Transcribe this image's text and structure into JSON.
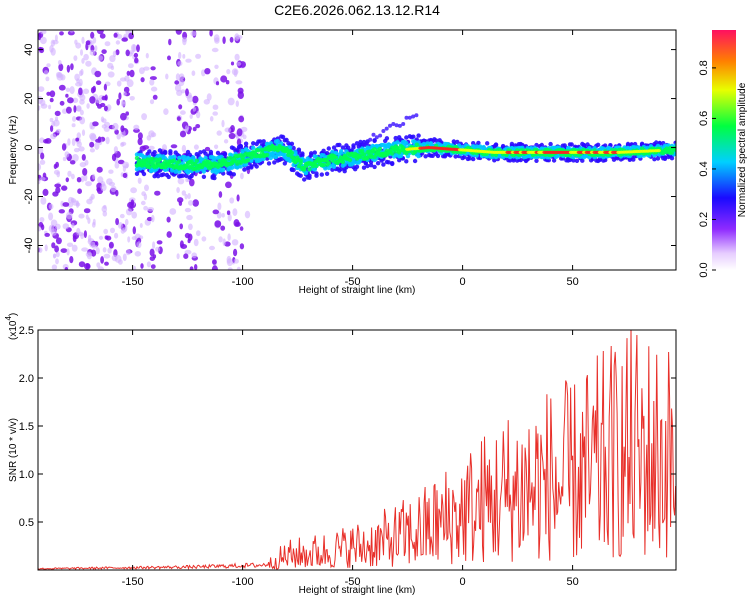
{
  "title": "C2E6.2026.062.13.12.R14",
  "chart_data": [
    {
      "type": "heatmap",
      "xlabel": "Height of straight line (km)",
      "ylabel": "Frequency (Hz)",
      "xlim": [
        -193,
        97
      ],
      "ylim": [
        -50,
        48
      ],
      "x_ticks": [
        -150,
        -100,
        -50,
        0,
        50
      ],
      "y_ticks": [
        -40,
        -20,
        0,
        20,
        40
      ],
      "colorbar": {
        "label": "Normalized spectral amplitude",
        "range": [
          0.0,
          0.95
        ],
        "ticks": [
          "0.0",
          "0.2",
          "0.4",
          "0.6",
          "0.8"
        ]
      },
      "ridge": [
        {
          "x": -148,
          "y": -6
        },
        {
          "x": -130,
          "y": -7
        },
        {
          "x": -110,
          "y": -7
        },
        {
          "x": -95,
          "y": -3
        },
        {
          "x": -82,
          "y": 0
        },
        {
          "x": -72,
          "y": -8
        },
        {
          "x": -60,
          "y": -5
        },
        {
          "x": -45,
          "y": -3
        },
        {
          "x": -30,
          "y": -1
        },
        {
          "x": -15,
          "y": 0
        },
        {
          "x": 0,
          "y": -1
        },
        {
          "x": 15,
          "y": -2
        },
        {
          "x": 40,
          "y": -2
        },
        {
          "x": 70,
          "y": -2
        },
        {
          "x": 95,
          "y": -1
        }
      ]
    },
    {
      "type": "line",
      "xlabel": "Height of straight line (km)",
      "ylabel": "SNR (10 * v/v)",
      "y_multiplier_label": "(x10",
      "y_multiplier_exp": "4",
      "xlim": [
        -193,
        97
      ],
      "ylim": [
        0,
        2.5
      ],
      "x_ticks": [
        -150,
        -100,
        -50,
        0,
        50
      ],
      "y_ticks": [
        "0.5",
        "1.0",
        "1.5",
        "2.0",
        "2.5"
      ],
      "color": "#e8302a",
      "envelope": [
        {
          "x": -193,
          "y": 0.02
        },
        {
          "x": -120,
          "y": 0.05
        },
        {
          "x": -90,
          "y": 0.08
        },
        {
          "x": -80,
          "y": 0.3
        },
        {
          "x": -60,
          "y": 0.4
        },
        {
          "x": -40,
          "y": 0.55
        },
        {
          "x": -20,
          "y": 0.8
        },
        {
          "x": 0,
          "y": 1.2
        },
        {
          "x": 10,
          "y": 1.4
        },
        {
          "x": 30,
          "y": 1.8
        },
        {
          "x": 50,
          "y": 1.9
        },
        {
          "x": 78,
          "y": 2.5
        },
        {
          "x": 95,
          "y": 2.3
        }
      ]
    }
  ]
}
